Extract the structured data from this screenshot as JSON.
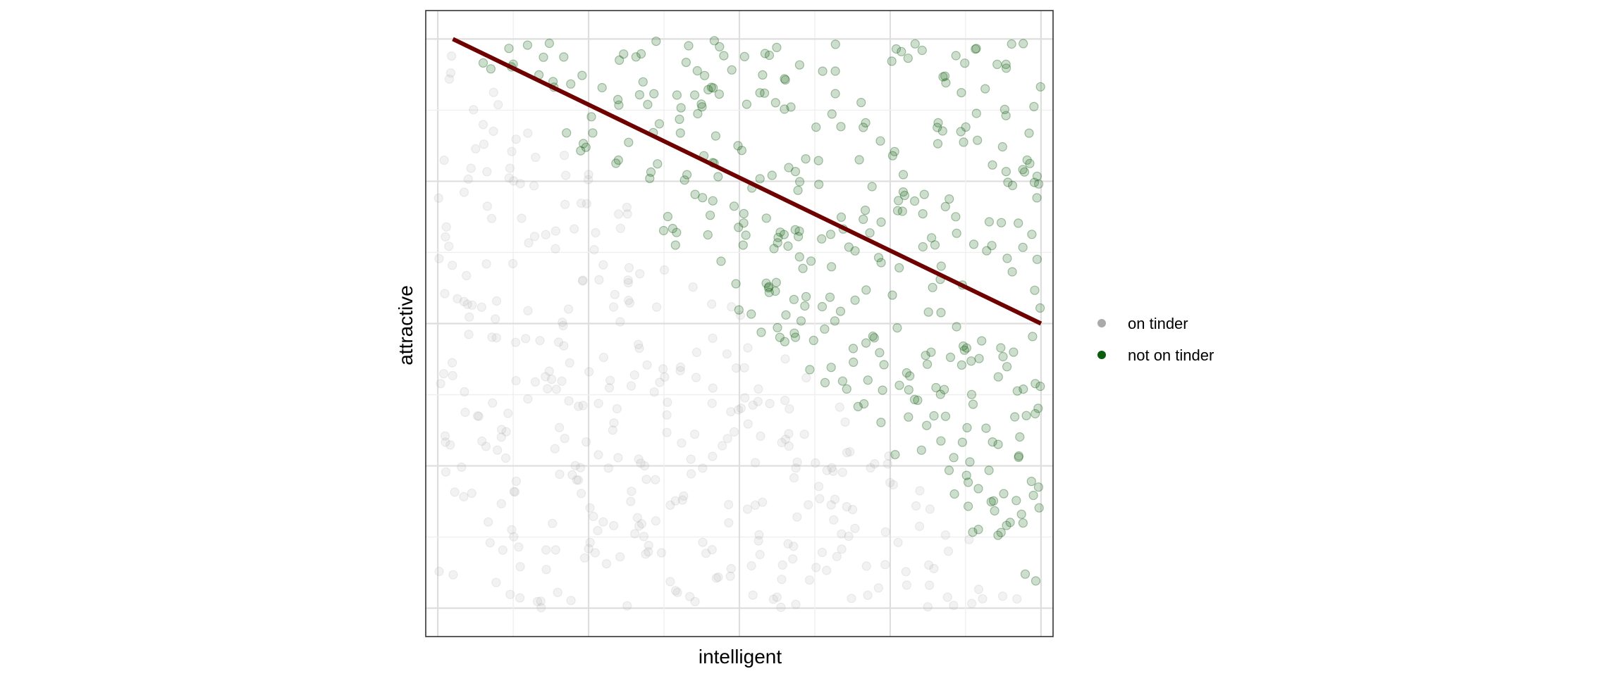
{
  "chart_data": {
    "type": "scatter",
    "xlabel": "intelligent",
    "ylabel": "attractive",
    "xlim": [
      -0.02,
      1.02
    ],
    "ylim": [
      -0.05,
      1.05
    ],
    "grid": true,
    "axis_tick_labels_visible": false,
    "legend_placement": "right",
    "legend": [
      "on tinder",
      "not on tinder"
    ],
    "rule": {
      "description_printed": false,
      "sum_threshold": 1.02
    },
    "point_count": 720,
    "point_opacity": 0.2,
    "series": [
      {
        "legend_index": 0,
        "color": "#aaaaaa"
      },
      {
        "legend_index": 1,
        "color": "#0b5c0b"
      }
    ],
    "trend_line": {
      "color": "#6e0000",
      "x": [
        0.025,
        1.0
      ],
      "y": [
        1.0,
        0.5
      ]
    }
  },
  "colors": {
    "panel_border": "#333333",
    "grid_major": "#dedede",
    "grid_minor": "#efefef"
  }
}
